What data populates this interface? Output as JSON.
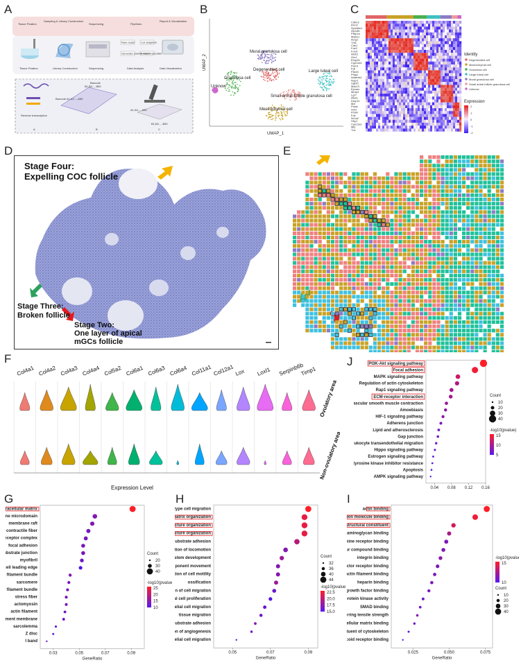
{
  "panel_labels": {
    "A": "A",
    "B": "B",
    "C": "C",
    "D": "D",
    "E": "E",
    "F": "F",
    "G": "G",
    "H": "H",
    "I": "I",
    "J": "J"
  },
  "panelA": {
    "steps": [
      "Tissue Fixation",
      "Sampling & Library Construction",
      "Sequencing",
      "Pipelines",
      "Report & Visualization"
    ],
    "icons": [
      "Tissue Fixation",
      "Library Construction",
      "Sequencing",
      "Data Analysis",
      "Data Visualization"
    ],
    "pipeline_boxes": [
      "Raw reads",
      "Cut adapters",
      "Generate counts matrix",
      "Extract barcodes"
    ],
    "barcode_title": "Barcode",
    "barcode_range": "B1,B2,...,B50",
    "barcode_a": "Barcode A1,A2,...,A50",
    "rt": "Reverse transcription",
    "grid_c": "A1,A2,...,A50",
    "grid_c2": "B1,B2,...,B50",
    "sub": [
      "A",
      "B",
      "C"
    ]
  },
  "panelB": {
    "xlabel": "UMAP_1",
    "ylabel": "UMAP_2",
    "clusters": [
      {
        "label": "Mural granulosa cell",
        "color": "#8e7cc3"
      },
      {
        "label": "Degenerated cell",
        "color": "#e06666"
      },
      {
        "label": "Large luteal cell",
        "color": "#3ec1c1"
      },
      {
        "label": "Granulosa cell",
        "color": "#4caf50"
      },
      {
        "label": "Unknow",
        "color": "#cc66cc"
      },
      {
        "label": "Small antral follicle granulosa cell",
        "color": "#ef9a9a"
      },
      {
        "label": "Mesenchymal cell",
        "color": "#c9a227"
      }
    ]
  },
  "panelC": {
    "genes": [
      "Cdkn3",
      "Rrm2",
      "Spindlin1",
      "Zfp185",
      "Ptbp1a",
      "Mafm1",
      "Acrg1",
      "Tnf1",
      "Cdk1",
      "Folr2",
      "Foxl1",
      "Aldh1",
      "Gnr1",
      "Emp2b",
      "Cyp11a1",
      "Pan1l",
      "Fgf",
      "Pard3",
      "Prkg1",
      "Adamts1",
      "Nupr1",
      "Ugt2b",
      "Mac13",
      "Epcam",
      "Mmp4",
      "Lgr7",
      "Alas1",
      "Dmp11",
      "Mcl",
      "Prkdc",
      "Hcf1",
      "Prolin",
      "Fdx",
      "Nr1a2",
      "Sfrp1",
      "Cyp11a1",
      "Mip",
      "Tnc"
    ],
    "legend_title": "Identity",
    "identities": [
      {
        "label": "Degenerated cell",
        "color": "#e06666"
      },
      {
        "label": "Mesenchymal cell",
        "color": "#c9a227"
      },
      {
        "label": "Granulosa cell",
        "color": "#4caf50"
      },
      {
        "label": "Large luteal cell",
        "color": "#3ec1c1"
      },
      {
        "label": "Mural granulosa cell",
        "color": "#8e7cc3"
      },
      {
        "label": "Small antral follicle granulosa cell",
        "color": "#ef9a9a"
      },
      {
        "label": "Unknow",
        "color": "#cc66cc"
      }
    ],
    "expr_title": "Expression",
    "expr_ticks": [
      "2",
      "1",
      "0",
      "-1",
      "-2"
    ]
  },
  "panelD": {
    "stage4_a": "Stage Four:",
    "stage4_b": "Expelling COC follicle",
    "stage3_a": "Stage Three:",
    "stage3_b": "Broken follicle",
    "stage2_a": "Stage Two:",
    "stage2_b": "One layer of apical",
    "stage2_c": "mGCs follicle"
  },
  "panelF": {
    "genes": [
      "Col4a1",
      "Col4a2",
      "Col4a3",
      "Col4a4",
      "Col5a2",
      "Col6a1",
      "Col6a3",
      "Col6a4",
      "Col11a1",
      "Col12a1",
      "Lox",
      "Loxl1",
      "Serpinb6b",
      "Timp1"
    ],
    "colors": [
      "#f07b72",
      "#e08a1e",
      "#c8a400",
      "#a3a500",
      "#3fb54a",
      "#00b06e",
      "#00c19a",
      "#00bcd8",
      "#00a5ff",
      "#7aa6ff",
      "#b385ff",
      "#e76bf3",
      "#fa62db",
      "#ff6c91"
    ],
    "row_top": "Ovulatory area",
    "row_bottom": "Non-ovulatory area",
    "xlabel": "Expression Level"
  },
  "chart_data": [
    {
      "panel": "J",
      "type": "scatter",
      "xlabel": "GeneRatio",
      "xlim": [
        0.02,
        0.16
      ],
      "xticks": [
        "0.04",
        "0.08",
        "0.12",
        "0.16"
      ],
      "categories": [
        "PI3K-Akt signaling pathway",
        "Focal adhesion",
        "MAPK signaling pathway",
        "Regulation of actin cytoskeleton",
        "Rap1 signaling pathway",
        "ECM-receptor interaction",
        "Vascular smooth muscle contraction",
        "Amoebiasis",
        "HIF-1 signaling pathway",
        "Adherens junction",
        "Lipid and atherosclerosis",
        "Gap junction",
        "Leukocyte transendothelial migration",
        "Hippo signaling pathway",
        "Estrogen signaling pathway",
        "EGFR tyrosine kinase inhibitor resistance",
        "Apoptosis",
        "AMPK signaling pathway"
      ],
      "x": [
        0.155,
        0.135,
        0.095,
        0.093,
        0.08,
        0.078,
        0.068,
        0.066,
        0.06,
        0.055,
        0.05,
        0.048,
        0.044,
        0.041,
        0.037,
        0.035,
        0.033,
        0.031
      ],
      "count": [
        42,
        36,
        26,
        24,
        22,
        21,
        18,
        17,
        16,
        15,
        14,
        13,
        12,
        11,
        10,
        9,
        9,
        8
      ],
      "pval": [
        18,
        17,
        13,
        11,
        10,
        10,
        9,
        8,
        8,
        7,
        6,
        6,
        5,
        5,
        4,
        4,
        3,
        3
      ],
      "boxed": [
        "PI3K-Akt signaling pathway",
        "Focal adhesion",
        "ECM-receptor interaction"
      ],
      "size_title": "Count",
      "size_ticks": [
        "10",
        "20",
        "30",
        "40"
      ],
      "color_title": "-log10(pvalue)",
      "color_ticks": [
        "15",
        "10",
        "5"
      ]
    },
    {
      "panel": "G",
      "type": "scatter",
      "xlabel": "GeneRatio",
      "xlim": [
        0.02,
        0.1
      ],
      "xticks": [
        "0.03",
        "0.05",
        "0.07",
        "0.09"
      ],
      "categories": [
        "collagen-containing extracellular matrix",
        "membrane microdomain",
        "membrane raft",
        "contractile fiber",
        "receptor complex",
        "focal adhesion",
        "cell-substrate junction",
        "myofibril",
        "cell leading edge",
        "actin filament bundle",
        "sarcomere",
        "contractile actin filament bundle",
        "stress fiber",
        "actomyosin",
        "actin filament",
        "basement membrane",
        "sarcolemma",
        "Z disc",
        "I band"
      ],
      "x": [
        0.091,
        0.062,
        0.06,
        0.057,
        0.055,
        0.053,
        0.053,
        0.052,
        0.051,
        0.043,
        0.042,
        0.041,
        0.04,
        0.04,
        0.039,
        0.038,
        0.032,
        0.03,
        0.025
      ],
      "count": [
        48,
        36,
        34,
        33,
        32,
        31,
        31,
        30,
        29,
        25,
        24,
        23,
        23,
        23,
        22,
        22,
        18,
        17,
        14
      ],
      "pval": [
        26,
        13,
        13,
        12,
        12,
        12,
        12,
        11,
        8,
        13,
        12,
        12,
        12,
        12,
        12,
        11,
        10,
        10,
        9
      ],
      "boxed": [
        "collagen-containing extracellular matrix"
      ],
      "size_title": "Count",
      "size_ticks": [
        "20",
        "30",
        "40"
      ],
      "color_title": "-log10(pvalue)",
      "color_ticks": [
        "25",
        "20",
        "15",
        "10"
      ]
    },
    {
      "panel": "H",
      "type": "scatter",
      "xlabel": "GeneRatio",
      "xlim": [
        0.04,
        0.095
      ],
      "xticks": [
        "0.05",
        "0.07",
        "0.09"
      ],
      "categories": [
        "ameboidal-type cell migration",
        "extracellular matrix organization",
        "extracellular structure organization",
        "external encapsulating structure organization",
        "cell-substrate adhesion",
        "negative regulation of locomotion",
        "reproductive system development",
        "negative regulation of cellular component movement",
        "negative regulation of cell motility",
        "ossification",
        "negative regulation of cell migration",
        "epithelial cell proliferation",
        "epithelial cell migration",
        "tissue migration",
        "regulation of cell-substrate adhesion",
        "regulation of angiogenesis",
        "regulation of epithelial cell migration"
      ],
      "x": [
        0.09,
        0.088,
        0.088,
        0.088,
        0.084,
        0.078,
        0.076,
        0.074,
        0.074,
        0.073,
        0.072,
        0.07,
        0.067,
        0.065,
        0.062,
        0.06,
        0.052
      ],
      "count": [
        44,
        43,
        43,
        43,
        41,
        38,
        37,
        36,
        36,
        36,
        35,
        34,
        33,
        32,
        30,
        29,
        26
      ],
      "pval": [
        22,
        21,
        21,
        21,
        19,
        17,
        18,
        17,
        17,
        18,
        16,
        15,
        16,
        16,
        17,
        16,
        15
      ],
      "boxed": [
        "extracellular matrix organization",
        "extracellular structure organization",
        "external encapsulating structure organization"
      ],
      "size_title": "Count",
      "size_ticks": [
        "32",
        "36",
        "40",
        "44"
      ],
      "color_title": "-log10(pvalue)",
      "color_ticks": [
        "22.5",
        "20.0",
        "17.5",
        "15.0"
      ]
    },
    {
      "panel": "I",
      "type": "scatter",
      "xlabel": "GeneRatio",
      "xlim": [
        0.01,
        0.08
      ],
      "xticks": [
        "0.025",
        "0.050",
        "0.075"
      ],
      "categories": [
        "actin binding",
        "cell adhesion molecule binding",
        "extracellular matrix structural constituent",
        "glycosaminoglycan binding",
        "cytokine receptor binding",
        "sulfur compound binding",
        "integrin binding",
        "growth factor receptor binding",
        "actin filament binding",
        "heparin binding",
        "growth factor binding",
        "transmembrane receptor protein kinase activity",
        "SMAD binding",
        "extracellular matrix structural constituent conferring tensile strength",
        "extracellular matrix binding",
        "structural constituent of cytoskeleton",
        "glucocorticoid receptor binding"
      ],
      "x": [
        0.076,
        0.068,
        0.053,
        0.05,
        0.048,
        0.046,
        0.044,
        0.042,
        0.04,
        0.038,
        0.036,
        0.032,
        0.03,
        0.028,
        0.026,
        0.022,
        0.018
      ],
      "count": [
        42,
        38,
        30,
        28,
        27,
        26,
        25,
        24,
        22,
        21,
        20,
        18,
        17,
        16,
        15,
        13,
        10
      ],
      "pval": [
        18,
        17,
        15,
        12,
        9,
        9,
        10,
        9,
        9,
        9,
        9,
        8,
        8,
        9,
        8,
        7,
        6
      ],
      "boxed": [
        "actin binding",
        "cell adhesion molecule binding",
        "extracellular matrix structural constituent"
      ],
      "size_title": "Count",
      "size_ticks": [
        "10",
        "20",
        "30",
        "40"
      ],
      "color_title": "-log10(pvalue)",
      "color_ticks": [
        "15",
        "10"
      ]
    }
  ]
}
